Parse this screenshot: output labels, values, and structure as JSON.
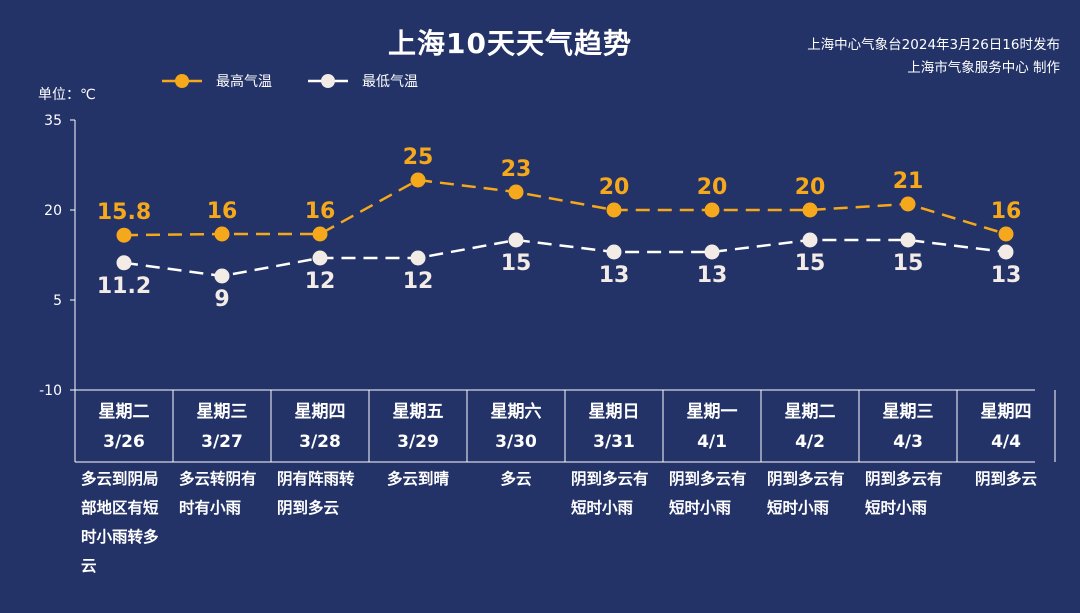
{
  "title": "上海10天天气趋势",
  "publisher": {
    "line1": "上海中心气象台2024年3月26日16时发布",
    "line2": "上海市气象服务中心 制作"
  },
  "unit_label": "单位：℃",
  "legend": {
    "high": "最高气温",
    "low": "最低气温"
  },
  "colors": {
    "background": "#233267",
    "high": "#f5a81c",
    "low": "#ffffff",
    "axis": "#ffffff"
  },
  "chart_data": {
    "type": "line",
    "ylim": [
      -10,
      35
    ],
    "yticks": [
      "35",
      "20",
      "5",
      "-10"
    ],
    "categories": [
      "3/26",
      "3/27",
      "3/28",
      "3/29",
      "3/30",
      "3/31",
      "4/1",
      "4/2",
      "4/3",
      "4/4"
    ],
    "series": [
      {
        "name": "最高气温",
        "values": [
          15.8,
          16,
          16,
          25,
          23,
          20,
          20,
          20,
          21,
          16
        ],
        "labels": [
          "15.8",
          "16",
          "16",
          "25",
          "23",
          "20",
          "20",
          "20",
          "21",
          "16"
        ]
      },
      {
        "name": "最低气温",
        "values": [
          11.2,
          9,
          12,
          12,
          15,
          13,
          13,
          15,
          15,
          13
        ],
        "labels": [
          "11.2",
          "9",
          "12",
          "12",
          "15",
          "13",
          "13",
          "15",
          "15",
          "13"
        ]
      }
    ]
  },
  "days": [
    {
      "weekday": "星期二",
      "date": "3/26",
      "desc": [
        "多云到阴局",
        "部地区有短",
        "时小雨转多",
        "云"
      ]
    },
    {
      "weekday": "星期三",
      "date": "3/27",
      "desc": [
        "多云转阴有",
        "时有小雨"
      ]
    },
    {
      "weekday": "星期四",
      "date": "3/28",
      "desc": [
        "阴有阵雨转",
        "阴到多云"
      ]
    },
    {
      "weekday": "星期五",
      "date": "3/29",
      "desc": [
        "多云到晴"
      ]
    },
    {
      "weekday": "星期六",
      "date": "3/30",
      "desc": [
        "多云"
      ]
    },
    {
      "weekday": "星期日",
      "date": "3/31",
      "desc": [
        "阴到多云有",
        "短时小雨"
      ]
    },
    {
      "weekday": "星期一",
      "date": "4/1",
      "desc": [
        "阴到多云有",
        "短时小雨"
      ]
    },
    {
      "weekday": "星期二",
      "date": "4/2",
      "desc": [
        "阴到多云有",
        "短时小雨"
      ]
    },
    {
      "weekday": "星期三",
      "date": "4/3",
      "desc": [
        "阴到多云有",
        "短时小雨"
      ]
    },
    {
      "weekday": "星期四",
      "date": "4/4",
      "desc": [
        "阴到多云"
      ]
    }
  ]
}
